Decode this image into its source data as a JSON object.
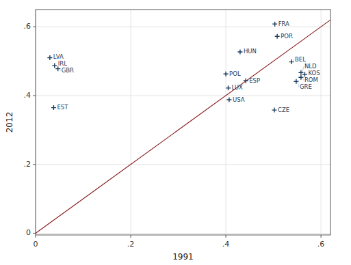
{
  "chart_data": {
    "type": "scatter",
    "x_label": "1991",
    "y_label": "2012",
    "labels": [
      "LVA",
      "IRL",
      "GBR",
      "EST",
      "HUN",
      "POL",
      "LUX",
      "ESP",
      "USA",
      "FRA",
      "POR",
      "BEL",
      "NLD",
      "KOS",
      "ROM",
      "GRE",
      "CZE"
    ],
    "x": [
      0.03,
      0.04,
      0.047,
      0.038,
      0.43,
      0.4,
      0.405,
      0.442,
      0.407,
      0.503,
      0.508,
      0.538,
      0.558,
      0.566,
      0.558,
      0.548,
      0.502
    ],
    "values": [
      0.51,
      0.487,
      0.478,
      0.365,
      0.527,
      0.463,
      0.422,
      0.443,
      0.388,
      0.608,
      0.572,
      0.498,
      0.467,
      0.462,
      0.453,
      0.441,
      0.358
    ],
    "color": "#1a3a5c",
    "marker": "plus",
    "reference_line": {
      "slope": 1.0,
      "intercept": 0.0,
      "color": "#8b2020"
    },
    "xlim": [
      0,
      0.62
    ],
    "ylim": [
      -0.005,
      0.65
    ],
    "xticks": [
      0,
      {
        "value": 0.2,
        "label": ".2"
      },
      {
        "value": 0.4,
        "label": ".4"
      },
      {
        "value": 0.6,
        "label": ".6"
      }
    ],
    "yticks": [
      0,
      {
        "value": 0.2,
        "label": ".2"
      },
      {
        "value": 0.4,
        "label": ".4"
      },
      {
        "value": 0.6,
        "label": ".6"
      }
    ],
    "grid": true
  }
}
